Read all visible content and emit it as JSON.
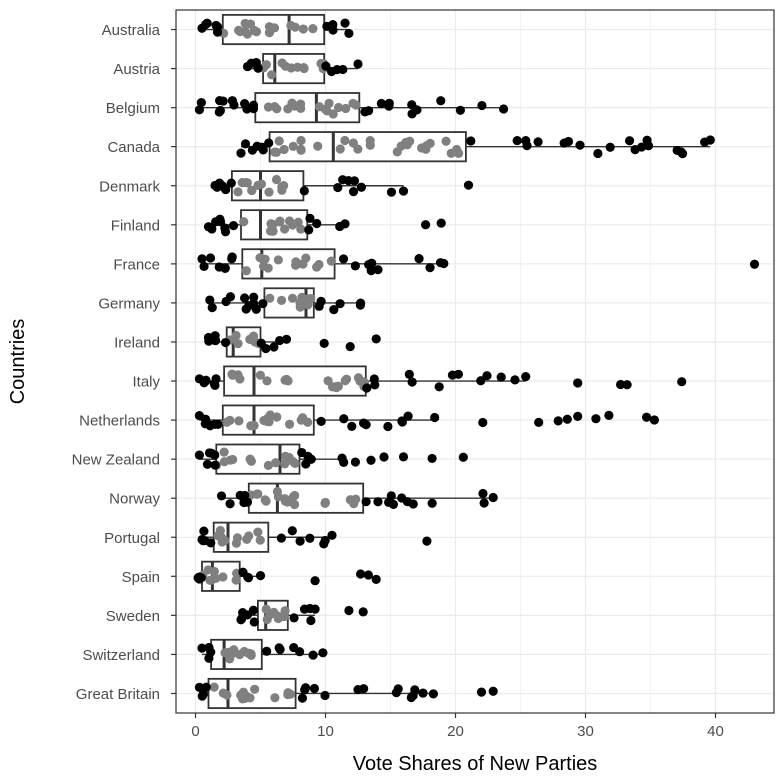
{
  "chart_data": {
    "type": "boxplot",
    "xlabel": "Vote Shares of New Parties",
    "ylabel": "Countries",
    "xlim": [
      -1.5,
      44.5
    ],
    "xticks": [
      0,
      10,
      20,
      30,
      40
    ],
    "grid": true,
    "colors": {
      "outer_point": "#000000",
      "inner_point": "#808080",
      "box_stroke": "#333333",
      "box_fill": "#ffffff",
      "median": "#333333",
      "grid": "#ebebeb",
      "panel_border": "#333333"
    },
    "categories": [
      "Australia",
      "Austria",
      "Belgium",
      "Canada",
      "Denmark",
      "Finland",
      "France",
      "Germany",
      "Ireland",
      "Italy",
      "Netherlands",
      "New Zealand",
      "Norway",
      "Portugal",
      "Spain",
      "Sweden",
      "Switzerland",
      "Great Britain"
    ],
    "boxes": [
      {
        "country": "Australia",
        "min": 0.5,
        "q1": 2.1,
        "median": 7.2,
        "q3": 9.9,
        "max": 11.8
      },
      {
        "country": "Austria",
        "min": 4.0,
        "q1": 5.2,
        "median": 6.1,
        "q3": 9.9,
        "max": 12.5
      },
      {
        "country": "Belgium",
        "min": 0.3,
        "q1": 4.6,
        "median": 9.3,
        "q3": 12.6,
        "max": 23.7
      },
      {
        "country": "Canada",
        "min": 3.5,
        "q1": 5.7,
        "median": 10.6,
        "q3": 20.8,
        "max": 39.6
      },
      {
        "country": "Denmark",
        "min": 1.5,
        "q1": 2.8,
        "median": 5.0,
        "q3": 8.3,
        "max": 16.0
      },
      {
        "country": "Finland",
        "min": 1.0,
        "q1": 3.5,
        "median": 5.0,
        "q3": 8.6,
        "max": 11.5
      },
      {
        "country": "France",
        "min": 0.5,
        "q1": 3.6,
        "median": 5.1,
        "q3": 10.7,
        "max": 19.1
      },
      {
        "country": "Germany",
        "min": 1.1,
        "q1": 5.3,
        "median": 8.5,
        "q3": 9.1,
        "max": 12.7
      },
      {
        "country": "Ireland",
        "min": 1.0,
        "q1": 2.4,
        "median": 2.9,
        "q3": 5.0,
        "max": 7.0
      },
      {
        "country": "Italy",
        "min": 0.3,
        "q1": 2.2,
        "median": 4.5,
        "q3": 13.1,
        "max": 25.4
      },
      {
        "country": "Netherlands",
        "min": 0.3,
        "q1": 2.1,
        "median": 4.5,
        "q3": 9.1,
        "max": 18.4
      },
      {
        "country": "New Zealand",
        "min": 0.3,
        "q1": 1.6,
        "median": 6.5,
        "q3": 8.0,
        "max": 11.4
      },
      {
        "country": "Norway",
        "min": 2.0,
        "q1": 4.1,
        "median": 6.3,
        "q3": 12.9,
        "max": 22.9
      },
      {
        "country": "Portugal",
        "min": 0.5,
        "q1": 1.4,
        "median": 2.5,
        "q3": 5.6,
        "max": 10.5
      },
      {
        "country": "Spain",
        "min": 0.2,
        "q1": 0.5,
        "median": 1.3,
        "q3": 3.4,
        "max": 5.0
      },
      {
        "country": "Sweden",
        "min": 3.5,
        "q1": 4.8,
        "median": 5.4,
        "q3": 7.1,
        "max": 9.2
      },
      {
        "country": "Switzerland",
        "min": 0.5,
        "q1": 1.2,
        "median": 2.2,
        "q3": 5.1,
        "max": 9.8
      },
      {
        "country": "Great Britain",
        "min": 0.3,
        "q1": 1.0,
        "median": 2.5,
        "q3": 7.7,
        "max": 18.3
      }
    ],
    "outliers": [
      {
        "country": "Canada",
        "values": [
          25.5,
          31.9
        ]
      },
      {
        "country": "Denmark",
        "values": [
          21.0
        ]
      },
      {
        "country": "Finland",
        "values": [
          17.7,
          18.9
        ]
      },
      {
        "country": "France",
        "values": [
          43.0
        ]
      },
      {
        "country": "Ireland",
        "values": [
          9.9,
          11.9,
          13.9
        ]
      },
      {
        "country": "Italy",
        "values": [
          29.4,
          32.7,
          33.2,
          37.4
        ]
      },
      {
        "country": "Netherlands",
        "values": [
          22.1,
          26.4,
          27.9,
          28.6,
          29.4,
          30.8,
          31.8,
          34.7,
          35.3
        ]
      },
      {
        "country": "New Zealand",
        "values": [
          12.3,
          13.5,
          14.5,
          16.0,
          18.2,
          20.6
        ]
      },
      {
        "country": "Norway",
        "values": [
          16.3
        ]
      },
      {
        "country": "Portugal",
        "values": [
          17.8
        ]
      },
      {
        "country": "Spain",
        "values": [
          9.2,
          12.7,
          13.3,
          13.9
        ]
      },
      {
        "country": "Sweden",
        "values": [
          11.8,
          12.9
        ]
      },
      {
        "country": "Great Britain",
        "values": [
          12.5,
          16.6,
          17.5,
          22.0,
          22.9
        ]
      }
    ]
  }
}
